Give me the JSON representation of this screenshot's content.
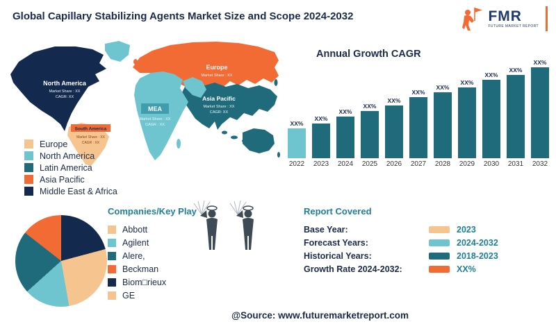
{
  "header": {
    "title": "Global Capillary Stabilizing Agents Market Size and Scope 2024-2032"
  },
  "logo": {
    "abbr": "FMR",
    "name": "FUTURE MARKET REPORT"
  },
  "map": {
    "colors": {
      "north_america": "#14294E",
      "greenland": "#6FC5CF",
      "south_america": "#F6C48F",
      "south_america_label_bg": "#F26B35",
      "europe": "#F26B35",
      "asia_pacific": "#1F6B7C",
      "mea": "#6FC5CF",
      "mea_label_bg": "#3F9DAD",
      "uk": "#F26B35"
    },
    "regions": {
      "north_america": {
        "name": "North America",
        "share": "Market Share : XX",
        "cagr": "CAGR: XX"
      },
      "south_america": {
        "name": "South America",
        "share": "Market Share : XX",
        "cagr": "CAGR : XX"
      },
      "europe": {
        "name": "Europe",
        "share": "Market Share : XX"
      },
      "mea": {
        "name": "MEA",
        "share": "Market Share : XX",
        "cagr": "CAGR : XX"
      },
      "asia_pacific": {
        "name": "Asia Pacific",
        "share": "Market Share : XX",
        "cagr": "CAGR: XX"
      }
    },
    "legend": [
      {
        "label": "Europe",
        "color": "#F6C48F"
      },
      {
        "label": "North America",
        "color": "#6FC5CF"
      },
      {
        "label": "Latin America",
        "color": "#1F6B7C"
      },
      {
        "label": "Asia Pacific",
        "color": "#F26B35"
      },
      {
        "label": "Middle East & Africa",
        "color": "#14294E"
      }
    ]
  },
  "chart_data": [
    {
      "type": "bar",
      "title": "Annual Growth CAGR",
      "categories": [
        "2022",
        "2023",
        "2024",
        "2025",
        "2026",
        "2027",
        "2028",
        "2029",
        "2030",
        "2031",
        "2032"
      ],
      "bar_label": "XX%",
      "values": [
        43,
        50,
        60,
        68,
        76,
        88,
        95,
        102,
        113,
        120,
        131
      ],
      "values_note": "all bars labeled XX% (placeholder); heights are relative px read from image, steadily increasing 2022-2032",
      "colors": [
        "#6FC5CF",
        "#1F6B7C",
        "#1F6B7C",
        "#1F6B7C",
        "#1F6B7C",
        "#1F6B7C",
        "#1F6B7C",
        "#1F6B7C",
        "#1F6B7C",
        "#1F6B7C",
        "#1F6B7C"
      ],
      "grid": false,
      "legend_position": "none"
    },
    {
      "type": "pie",
      "title": "Companies/Key Play",
      "slices": [
        {
          "label": "Biom□rieux",
          "color": "#14294E",
          "start": 0,
          "end": 75,
          "approx_pct": 21
        },
        {
          "label": "Abbott / GE",
          "color": "#F6C48F",
          "start": 75,
          "end": 170,
          "approx_pct": 26
        },
        {
          "label": "Agilent",
          "color": "#6FC5CF",
          "start": 170,
          "end": 228,
          "approx_pct": 16
        },
        {
          "label": "Alere,",
          "color": "#1F6B7C",
          "start": 228,
          "end": 308,
          "approx_pct": 22
        },
        {
          "label": "Beckman",
          "color": "#F26B35",
          "start": 308,
          "end": 360,
          "approx_pct": 15
        }
      ]
    }
  ],
  "companies": {
    "heading": "Companies/Key Play",
    "items": [
      {
        "label": "Abbott",
        "color": "#F6C48F"
      },
      {
        "label": "Agilent",
        "color": "#6FC5CF"
      },
      {
        "label": "Alere,",
        "color": "#1F6B7C"
      },
      {
        "label": "Beckman",
        "color": "#F26B35"
      },
      {
        "label": "Biom□rieux",
        "color": "#14294E"
      },
      {
        "label": "GE",
        "color": "#F6C48F"
      }
    ]
  },
  "report": {
    "heading": "Report Covered",
    "rows": [
      {
        "label": "Base Year:",
        "value": "2023",
        "color": "#F6C48F"
      },
      {
        "label": "Forecast Years:",
        "value": "2024-2032",
        "color": "#6FC5CF"
      },
      {
        "label": "Historical Years:",
        "value": "2018-2023",
        "color": "#1F6B7C"
      },
      {
        "label": "Growth Rate 2024-2032:",
        "value": "XX%",
        "color": "#F26B35"
      }
    ]
  },
  "footer": {
    "source": "@Source: www.futuremarketreport.com"
  }
}
